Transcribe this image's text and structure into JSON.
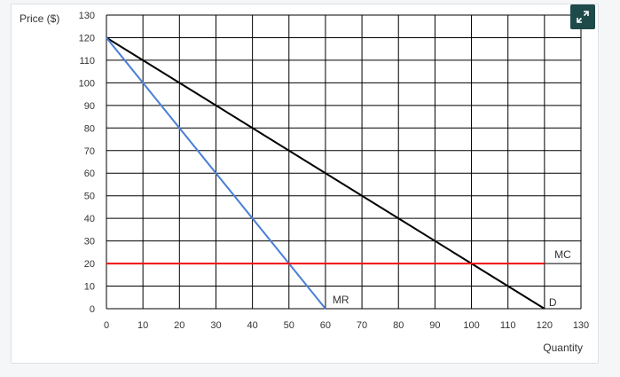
{
  "chart_data": {
    "type": "line",
    "ylabel": "Price ($)",
    "xlabel": "Quantity",
    "xlim": [
      0,
      130
    ],
    "ylim": [
      0,
      130
    ],
    "x_ticks": [
      0,
      10,
      20,
      30,
      40,
      50,
      60,
      70,
      80,
      90,
      100,
      110,
      120,
      130
    ],
    "y_ticks": [
      0,
      10,
      20,
      30,
      40,
      50,
      60,
      70,
      80,
      90,
      100,
      110,
      120,
      130
    ],
    "grid": true,
    "series": [
      {
        "name": "D",
        "color": "#000000",
        "points": [
          [
            0,
            120
          ],
          [
            120,
            0
          ]
        ]
      },
      {
        "name": "MR",
        "color": "#4a7fd4",
        "points": [
          [
            0,
            120
          ],
          [
            60,
            0
          ]
        ]
      },
      {
        "name": "MC",
        "color": "#ee1111",
        "points": [
          [
            0,
            20
          ],
          [
            120,
            20
          ]
        ]
      }
    ]
  },
  "controls": {
    "expand_icon": "expand-arrows-icon"
  }
}
